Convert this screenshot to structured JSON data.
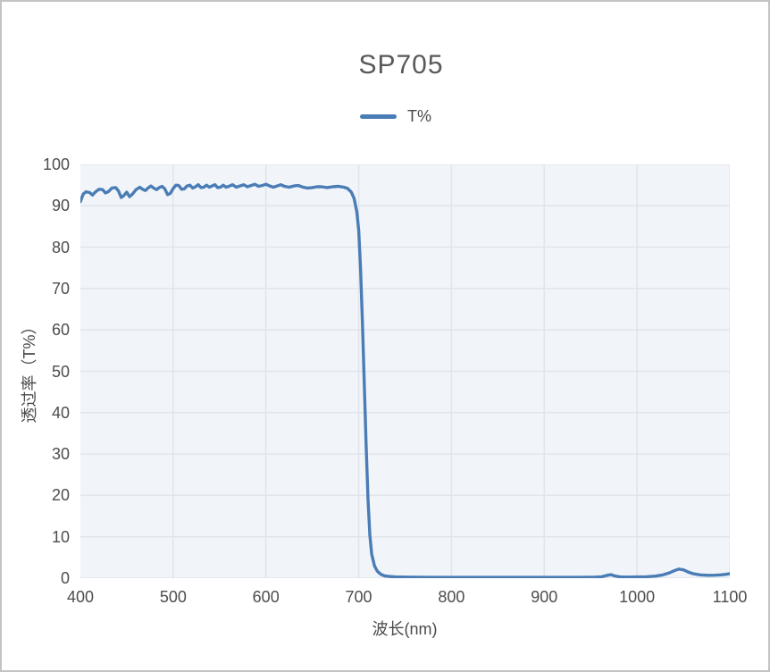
{
  "chart": {
    "title": "SP705",
    "x_axis_title": "波长(nm)",
    "y_axis_title": "透过率（T%）",
    "legend_label": "T%"
  },
  "colors": {
    "line": "#4a7cb6",
    "plot_background": "#f1f5f9",
    "gridline": "#e1e4e9",
    "title_text": "#595959",
    "tick_text": "#4d4d4d",
    "frame_border": "#c3c3c3"
  },
  "chart_data": {
    "type": "line",
    "title": "SP705",
    "xlabel": "波长(nm)",
    "ylabel": "透过率（T%）",
    "legend": [
      "T%"
    ],
    "legend_position": "top-center",
    "grid": true,
    "xlim": [
      400,
      1100
    ],
    "ylim": [
      0,
      100
    ],
    "xticks": [
      400,
      500,
      600,
      700,
      800,
      900,
      1000,
      1100
    ],
    "yticks": [
      0,
      10,
      20,
      30,
      40,
      50,
      60,
      70,
      80,
      90,
      100
    ],
    "series": [
      {
        "name": "T%",
        "color": "#4a7cb6",
        "points": [
          [
            400,
            91.0
          ],
          [
            403,
            92.8
          ],
          [
            406,
            93.4
          ],
          [
            410,
            93.2
          ],
          [
            413,
            92.6
          ],
          [
            416,
            93.3
          ],
          [
            420,
            94.0
          ],
          [
            424,
            93.9
          ],
          [
            427,
            93.1
          ],
          [
            430,
            93.4
          ],
          [
            434,
            94.3
          ],
          [
            438,
            94.4
          ],
          [
            441,
            93.6
          ],
          [
            444,
            92.0
          ],
          [
            447,
            92.5
          ],
          [
            450,
            93.3
          ],
          [
            453,
            92.2
          ],
          [
            456,
            92.8
          ],
          [
            460,
            93.9
          ],
          [
            464,
            94.5
          ],
          [
            467,
            94.0
          ],
          [
            470,
            93.7
          ],
          [
            473,
            94.3
          ],
          [
            476,
            94.8
          ],
          [
            479,
            94.3
          ],
          [
            482,
            93.9
          ],
          [
            485,
            94.4
          ],
          [
            488,
            94.7
          ],
          [
            491,
            94.1
          ],
          [
            494,
            92.7
          ],
          [
            497,
            93.0
          ],
          [
            500,
            94.2
          ],
          [
            503,
            95.0
          ],
          [
            506,
            94.9
          ],
          [
            509,
            94.0
          ],
          [
            512,
            94.1
          ],
          [
            515,
            94.8
          ],
          [
            518,
            95.0
          ],
          [
            521,
            94.3
          ],
          [
            524,
            94.6
          ],
          [
            527,
            95.1
          ],
          [
            530,
            94.4
          ],
          [
            533,
            94.5
          ],
          [
            536,
            95.0
          ],
          [
            539,
            94.5
          ],
          [
            542,
            94.8
          ],
          [
            545,
            95.1
          ],
          [
            548,
            94.4
          ],
          [
            551,
            94.5
          ],
          [
            554,
            95.0
          ],
          [
            557,
            94.5
          ],
          [
            560,
            94.7
          ],
          [
            564,
            95.1
          ],
          [
            568,
            94.5
          ],
          [
            572,
            94.8
          ],
          [
            576,
            95.1
          ],
          [
            580,
            94.6
          ],
          [
            584,
            94.9
          ],
          [
            588,
            95.2
          ],
          [
            592,
            94.7
          ],
          [
            596,
            94.9
          ],
          [
            600,
            95.2
          ],
          [
            604,
            94.8
          ],
          [
            608,
            94.5
          ],
          [
            612,
            94.8
          ],
          [
            616,
            95.1
          ],
          [
            620,
            94.7
          ],
          [
            625,
            94.5
          ],
          [
            630,
            94.8
          ],
          [
            635,
            94.9
          ],
          [
            640,
            94.5
          ],
          [
            645,
            94.3
          ],
          [
            650,
            94.4
          ],
          [
            655,
            94.6
          ],
          [
            660,
            94.6
          ],
          [
            666,
            94.4
          ],
          [
            672,
            94.6
          ],
          [
            678,
            94.7
          ],
          [
            684,
            94.5
          ],
          [
            688,
            94.2
          ],
          [
            692,
            93.3
          ],
          [
            695,
            91.8
          ],
          [
            698,
            88.5
          ],
          [
            700,
            84
          ],
          [
            702,
            75
          ],
          [
            704,
            62
          ],
          [
            706,
            47
          ],
          [
            708,
            32
          ],
          [
            710,
            19
          ],
          [
            712,
            10.5
          ],
          [
            714,
            5.8
          ],
          [
            717,
            3.0
          ],
          [
            720,
            1.7
          ],
          [
            724,
            0.9
          ],
          [
            728,
            0.55
          ],
          [
            733,
            0.4
          ],
          [
            740,
            0.3
          ],
          [
            750,
            0.25
          ],
          [
            760,
            0.22
          ],
          [
            780,
            0.2
          ],
          [
            800,
            0.2
          ],
          [
            820,
            0.2
          ],
          [
            840,
            0.2
          ],
          [
            860,
            0.2
          ],
          [
            880,
            0.2
          ],
          [
            900,
            0.2
          ],
          [
            920,
            0.2
          ],
          [
            940,
            0.2
          ],
          [
            955,
            0.25
          ],
          [
            962,
            0.35
          ],
          [
            968,
            0.7
          ],
          [
            972,
            0.85
          ],
          [
            976,
            0.55
          ],
          [
            982,
            0.3
          ],
          [
            990,
            0.25
          ],
          [
            1000,
            0.3
          ],
          [
            1010,
            0.35
          ],
          [
            1020,
            0.5
          ],
          [
            1028,
            0.8
          ],
          [
            1035,
            1.3
          ],
          [
            1040,
            1.8
          ],
          [
            1045,
            2.2
          ],
          [
            1050,
            2.0
          ],
          [
            1055,
            1.5
          ],
          [
            1060,
            1.1
          ],
          [
            1068,
            0.8
          ],
          [
            1076,
            0.7
          ],
          [
            1084,
            0.72
          ],
          [
            1090,
            0.8
          ],
          [
            1095,
            0.9
          ],
          [
            1100,
            1.1
          ]
        ]
      }
    ]
  }
}
